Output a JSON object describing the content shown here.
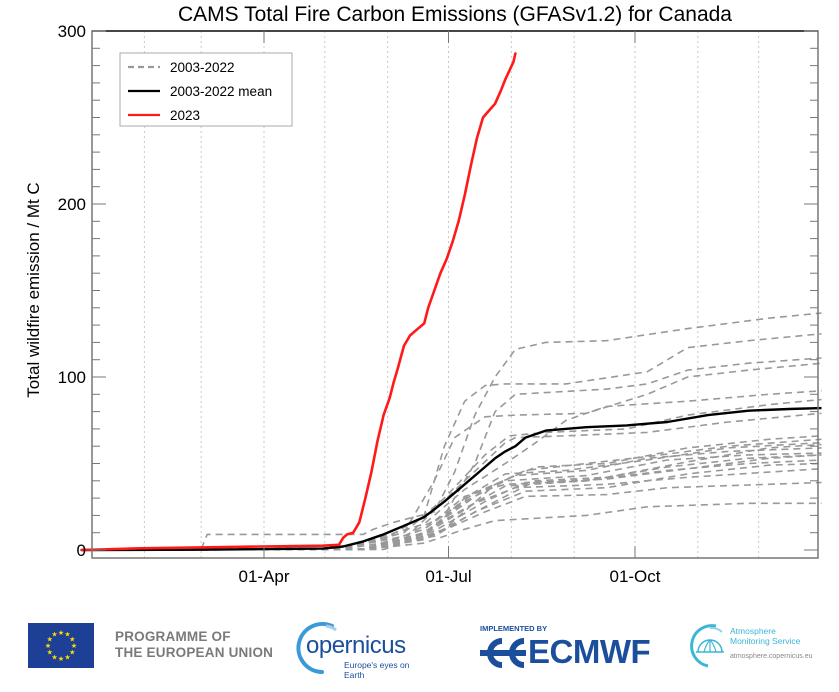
{
  "chart_data": {
    "type": "line",
    "title": "CAMS Total Fire Carbon Emissions (GFASv1.2) for Canada",
    "xlabel": "",
    "ylabel": "Total wildfire emission / Mt C",
    "x_unit": "day of year",
    "xlim": [
      1,
      366
    ],
    "ylim": [
      0,
      300
    ],
    "y_ticks": [
      0,
      100,
      200,
      300
    ],
    "y_tick_labels": [
      "0",
      "100",
      "200",
      "300"
    ],
    "y_minor_step": 10,
    "x_ticks": [
      91,
      182,
      274
    ],
    "x_tick_labels": [
      "01-Apr",
      "01-Jul",
      "01-Oct"
    ],
    "x_grid_days": [
      32,
      60,
      91,
      121,
      152,
      182,
      213,
      244,
      274,
      305,
      335
    ],
    "grid": true,
    "legend": {
      "position": "top-left",
      "entries": [
        {
          "label": "2003-2022",
          "style": "dashed",
          "color": "#999999"
        },
        {
          "label": "2003-2022 mean",
          "style": "solid",
          "color": "#000000"
        },
        {
          "label": "2023",
          "style": "solid",
          "color": "#ff1a1a"
        }
      ]
    },
    "series": [
      {
        "name": "2023",
        "color": "#ff1a1a",
        "style": "solid",
        "x": [
          1,
          30,
          60,
          90,
          120,
          128,
          130,
          132,
          135,
          138,
          141,
          144,
          147,
          150,
          153,
          155,
          157,
          160,
          163,
          166,
          170,
          172,
          175,
          178,
          181,
          184,
          187,
          190,
          193,
          196,
          199,
          202,
          205,
          208,
          210,
          212,
          214,
          215
        ],
        "values": [
          0,
          1,
          1.5,
          2,
          2.5,
          3,
          7,
          9,
          10,
          16,
          30,
          45,
          63,
          78,
          88,
          97,
          105,
          118,
          124,
          127,
          131,
          140,
          150,
          160,
          168,
          178,
          190,
          205,
          222,
          238,
          250,
          254,
          258,
          266,
          272,
          277,
          282,
          287
        ]
      },
      {
        "name": "2003-2022 mean",
        "color": "#000000",
        "style": "solid",
        "x": [
          1,
          60,
          120,
          130,
          140,
          150,
          160,
          170,
          180,
          190,
          200,
          205,
          210,
          215,
          220,
          230,
          250,
          270,
          290,
          310,
          330,
          350,
          366
        ],
        "values": [
          0,
          0.2,
          0.8,
          2,
          5,
          9,
          14,
          19,
          28,
          38,
          48,
          53,
          57,
          60,
          65,
          69,
          71,
          72,
          74,
          78,
          80.5,
          81.5,
          82
        ]
      },
      {
        "name": "2003-2022 #1",
        "style": "dashed",
        "color": "#999999",
        "x": [
          1,
          60,
          63,
          140,
          145,
          155,
          175,
          185,
          195,
          205,
          215,
          230,
          260,
          300,
          340,
          366
        ],
        "values": [
          0,
          0.5,
          9,
          9,
          12,
          16,
          22,
          45,
          78,
          100,
          116,
          120,
          121,
          128,
          134,
          137
        ]
      },
      {
        "name": "2003-2022 #2",
        "style": "dashed",
        "color": "#999999",
        "x": [
          1,
          130,
          150,
          170,
          180,
          190,
          200,
          210,
          240,
          280,
          300,
          330,
          366
        ],
        "values": [
          0,
          1,
          6,
          20,
          60,
          86,
          95,
          96,
          96,
          103,
          117,
          121,
          125
        ]
      },
      {
        "name": "2003-2022 #3",
        "style": "dashed",
        "color": "#999999",
        "x": [
          1,
          130,
          160,
          180,
          195,
          205,
          215,
          260,
          280,
          300,
          330,
          366
        ],
        "values": [
          0,
          1,
          8,
          20,
          50,
          80,
          90,
          93,
          96,
          104,
          108,
          111
        ]
      },
      {
        "name": "2003-2022 #4",
        "style": "dashed",
        "color": "#999999",
        "x": [
          1,
          130,
          160,
          175,
          185,
          200,
          215,
          250,
          280,
          300,
          330,
          366
        ],
        "values": [
          0,
          1,
          10,
          40,
          65,
          77,
          78,
          79,
          90,
          100,
          104,
          108
        ]
      },
      {
        "name": "2003-2022 #5",
        "style": "dashed",
        "color": "#999999",
        "x": [
          1,
          130,
          170,
          190,
          210,
          225,
          240,
          260,
          300,
          340,
          366
        ],
        "values": [
          0,
          1,
          15,
          35,
          50,
          62,
          75,
          83,
          86,
          90,
          92
        ]
      },
      {
        "name": "2003-2022 #6",
        "style": "dashed",
        "color": "#999999",
        "x": [
          1,
          130,
          160,
          180,
          200,
          212,
          230,
          270,
          300,
          340,
          366
        ],
        "values": [
          0,
          1,
          10,
          30,
          55,
          66,
          68,
          70,
          78,
          84,
          87
        ]
      },
      {
        "name": "2003-2022 #7",
        "style": "dashed",
        "color": "#999999",
        "x": [
          1,
          130,
          160,
          190,
          210,
          215,
          240,
          280,
          320,
          366
        ],
        "values": [
          0,
          0.5,
          6,
          40,
          62,
          65,
          66,
          68,
          74,
          79
        ]
      },
      {
        "name": "2003-2022 #8",
        "style": "dashed",
        "color": "#999999",
        "x": [
          1,
          140,
          170,
          200,
          220,
          250,
          280,
          320,
          366
        ],
        "values": [
          0,
          0.5,
          10,
          35,
          46,
          50,
          54,
          60,
          64
        ]
      },
      {
        "name": "2003-2022 #9",
        "style": "dashed",
        "color": "#999999",
        "x": [
          1,
          140,
          170,
          190,
          210,
          240,
          280,
          320,
          366
        ],
        "values": [
          0,
          0.5,
          8,
          30,
          44,
          46,
          52,
          59,
          62
        ]
      },
      {
        "name": "2003-2022 #10",
        "style": "dashed",
        "color": "#999999",
        "x": [
          1,
          140,
          170,
          195,
          215,
          250,
          280,
          320,
          366
        ],
        "values": [
          0,
          0.5,
          12,
          33,
          43,
          46,
          53,
          57,
          59
        ]
      },
      {
        "name": "2003-2022 #11",
        "style": "dashed",
        "color": "#999999",
        "x": [
          1,
          140,
          170,
          190,
          210,
          250,
          290,
          330,
          366
        ],
        "values": [
          0,
          0.5,
          10,
          28,
          40,
          43,
          52,
          55,
          56
        ]
      },
      {
        "name": "2003-2022 #12",
        "style": "dashed",
        "color": "#999999",
        "x": [
          1,
          140,
          165,
          190,
          210,
          250,
          290,
          330,
          366
        ],
        "values": [
          0,
          0.5,
          7,
          24,
          37,
          40,
          46,
          50,
          52
        ]
      },
      {
        "name": "2003-2022 #13",
        "style": "dashed",
        "color": "#999999",
        "x": [
          1,
          140,
          170,
          195,
          215,
          260,
          300,
          340,
          366
        ],
        "values": [
          0,
          0.5,
          9,
          27,
          36,
          38,
          42,
          45,
          47
        ]
      },
      {
        "name": "2003-2022 #14",
        "style": "dashed",
        "color": "#999999",
        "x": [
          1,
          140,
          175,
          200,
          220,
          260,
          290,
          340,
          366
        ],
        "values": [
          0,
          0.5,
          9,
          22,
          31,
          32,
          36,
          38,
          39
        ]
      },
      {
        "name": "2003-2022 #15",
        "style": "dashed",
        "color": "#999999",
        "x": [
          1,
          140,
          170,
          190,
          205,
          250,
          280,
          330,
          366
        ],
        "values": [
          0,
          0.3,
          4,
          12,
          17,
          20,
          25,
          27,
          27
        ]
      },
      {
        "name": "2003-2022 #16",
        "style": "dashed",
        "color": "#999999",
        "x": [
          1,
          140,
          175,
          200,
          220,
          260,
          300,
          340,
          366
        ],
        "values": [
          0,
          0.4,
          11,
          28,
          39,
          41,
          47,
          53,
          55
        ]
      },
      {
        "name": "2003-2022 #17",
        "style": "dashed",
        "color": "#999999",
        "x": [
          1,
          140,
          170,
          190,
          210,
          250,
          290,
          330,
          366
        ],
        "values": [
          0,
          0.4,
          12,
          31,
          38,
          40,
          48,
          53,
          55
        ]
      },
      {
        "name": "2003-2022 #18",
        "style": "dashed",
        "color": "#999999",
        "x": [
          1,
          140,
          175,
          195,
          220,
          260,
          300,
          340,
          366
        ],
        "values": [
          0,
          0.3,
          8,
          22,
          34,
          36,
          44,
          49,
          50
        ]
      },
      {
        "name": "2003-2022 #19",
        "style": "dashed",
        "color": "#999999",
        "x": [
          1,
          140,
          170,
          200,
          225,
          260,
          300,
          340,
          366
        ],
        "values": [
          0,
          0.3,
          6,
          25,
          40,
          42,
          51,
          59,
          61
        ]
      },
      {
        "name": "2003-2022 #20",
        "style": "dashed",
        "color": "#999999",
        "x": [
          1,
          150,
          180,
          205,
          225,
          260,
          300,
          340,
          366
        ],
        "values": [
          0,
          0.3,
          12,
          38,
          48,
          50,
          59,
          64,
          66
        ]
      }
    ]
  },
  "footer": {
    "eu_programme_line1": "PROGRAMME OF",
    "eu_programme_line2": "THE EUROPEAN UNION",
    "copernicus_name": "opernicus",
    "copernicus_tagline": "Europe's eyes on Earth",
    "implemented_by": "IMPLEMENTED BY",
    "ecmwf_name": "ECMWF",
    "cams_line1": "Atmosphere",
    "cams_line2": "Monitoring Service",
    "cams_url": "atmosphere.copernicus.eu"
  }
}
